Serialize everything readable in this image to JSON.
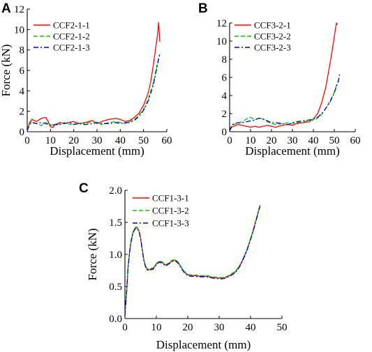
{
  "chart_data": [
    {
      "panel": "A",
      "type": "line",
      "xlabel": "Displacement (mm)",
      "ylabel": "Force (kN)",
      "xlim": [
        0,
        60
      ],
      "ylim": [
        0,
        12
      ],
      "xticks": [
        0,
        10,
        20,
        30,
        40,
        50,
        60
      ],
      "yticks": [
        0,
        2,
        4,
        6,
        8,
        10,
        12
      ],
      "legend_position": "top-left",
      "series": [
        {
          "name": "CCF2-1-1",
          "color": "#ff0000",
          "dash": "solid",
          "x": [
            0,
            1,
            2,
            4,
            6,
            8,
            9,
            10,
            11,
            12,
            14,
            16,
            18,
            20,
            22,
            25,
            28,
            30,
            32,
            35,
            38,
            40,
            42,
            44,
            46,
            48,
            50,
            52,
            53,
            54,
            55,
            56,
            56.5,
            57
          ],
          "y": [
            0.1,
            0.9,
            1.2,
            1.0,
            1.3,
            1.4,
            1.0,
            0.5,
            0.4,
            0.7,
            0.9,
            0.8,
            0.9,
            1.0,
            0.8,
            0.9,
            1.1,
            0.8,
            1.0,
            1.2,
            1.3,
            1.2,
            1.0,
            1.1,
            1.4,
            1.8,
            2.6,
            3.8,
            4.8,
            6.2,
            7.8,
            9.5,
            10.7,
            8.8
          ]
        },
        {
          "name": "CCF2-1-2",
          "color": "#00cc00",
          "dash": "dashed",
          "x": [
            0,
            1,
            2,
            4,
            6,
            8,
            10,
            12,
            14,
            16,
            18,
            20,
            22,
            25,
            28,
            30,
            32,
            35,
            38,
            40,
            42,
            44,
            46,
            48,
            50,
            52,
            54,
            55,
            56,
            57
          ],
          "y": [
            0.1,
            0.8,
            1.0,
            0.8,
            0.6,
            0.9,
            0.7,
            0.6,
            0.8,
            0.9,
            0.7,
            0.8,
            0.9,
            0.8,
            1.0,
            0.9,
            0.7,
            0.9,
            1.0,
            0.9,
            0.8,
            1.0,
            1.2,
            1.6,
            2.2,
            3.2,
            4.6,
            5.6,
            6.8,
            7.6
          ]
        },
        {
          "name": "CCF2-1-3",
          "color": "#0000cc",
          "dash": "dashdot",
          "x": [
            0,
            1,
            2,
            4,
            6,
            8,
            10,
            12,
            14,
            16,
            18,
            20,
            22,
            25,
            28,
            30,
            32,
            35,
            38,
            40,
            42,
            44,
            46,
            48,
            50,
            52,
            54,
            55,
            56,
            57
          ],
          "y": [
            0.1,
            0.7,
            0.9,
            0.8,
            0.9,
            0.8,
            0.6,
            0.7,
            0.7,
            0.8,
            0.9,
            0.7,
            0.8,
            0.7,
            0.8,
            0.9,
            0.8,
            0.8,
            0.9,
            0.8,
            0.9,
            0.9,
            1.1,
            1.5,
            2.1,
            3.0,
            4.4,
            5.4,
            6.6,
            7.7
          ]
        }
      ]
    },
    {
      "panel": "B",
      "type": "line",
      "xlabel": "Displacement (mm)",
      "ylabel": "",
      "xlim": [
        0,
        60
      ],
      "ylim": [
        0,
        12
      ],
      "xticks": [
        0,
        10,
        20,
        30,
        40,
        50,
        60
      ],
      "yticks": [
        0,
        2,
        4,
        6,
        8,
        10,
        12
      ],
      "legend_position": "top-left",
      "series": [
        {
          "name": "CCF3-2-1",
          "color": "#ff0000",
          "dash": "solid",
          "x": [
            0,
            1,
            2,
            4,
            6,
            8,
            10,
            12,
            14,
            16,
            18,
            20,
            22,
            25,
            28,
            30,
            32,
            35,
            38,
            40,
            42,
            44,
            46,
            47,
            48,
            49,
            50,
            51,
            51.5
          ],
          "y": [
            0.1,
            0.5,
            0.6,
            0.8,
            0.7,
            0.6,
            0.5,
            0.6,
            0.5,
            0.6,
            0.7,
            0.6,
            0.5,
            0.7,
            0.8,
            0.7,
            0.9,
            1.0,
            1.1,
            1.4,
            2.0,
            3.2,
            5.0,
            6.3,
            7.6,
            9.0,
            10.5,
            12.0,
            11.8
          ]
        },
        {
          "name": "CCF3-2-2",
          "color": "#00cc00",
          "dash": "dashed",
          "x": [
            0,
            1,
            2,
            4,
            6,
            8,
            10,
            12,
            14,
            16,
            18,
            20,
            22,
            25,
            28,
            30,
            32,
            35,
            38,
            40,
            42,
            44,
            46,
            48,
            50,
            51,
            52
          ],
          "y": [
            0.1,
            0.6,
            0.8,
            0.9,
            1.1,
            1.4,
            1.6,
            1.3,
            1.5,
            1.4,
            1.1,
            0.9,
            0.8,
            0.9,
            1.0,
            0.9,
            1.0,
            1.1,
            1.2,
            1.3,
            1.5,
            1.9,
            2.6,
            3.4,
            4.4,
            5.1,
            5.7
          ]
        },
        {
          "name": "CCF3-2-3",
          "color": "#0000cc",
          "dash": "dashdot",
          "x": [
            0,
            1,
            2,
            4,
            6,
            8,
            10,
            12,
            14,
            16,
            18,
            20,
            22,
            25,
            28,
            30,
            32,
            35,
            38,
            40,
            42,
            44,
            46,
            48,
            50,
            51,
            52,
            52.5
          ],
          "y": [
            0.1,
            0.7,
            0.9,
            1.0,
            1.0,
            1.1,
            1.2,
            1.3,
            1.5,
            1.4,
            1.2,
            1.0,
            1.0,
            0.9,
            0.8,
            1.0,
            1.1,
            1.2,
            1.3,
            1.4,
            1.6,
            2.0,
            2.6,
            3.3,
            4.3,
            5.0,
            5.6,
            6.4
          ]
        }
      ]
    },
    {
      "panel": "C",
      "type": "line",
      "xlabel": "Displacement (mm)",
      "ylabel": "Force (kN)",
      "xlim": [
        0,
        50
      ],
      "ylim": [
        0,
        2.0
      ],
      "xticks": [
        0,
        10,
        20,
        30,
        40,
        50
      ],
      "yticks": [
        "0.0",
        "0.5",
        "1.0",
        "1.5",
        "2.0"
      ],
      "legend_position": "top-left",
      "series": [
        {
          "name": "CCF1-3-1",
          "color": "#ff0000",
          "dash": "solid",
          "x": [
            0,
            0.5,
            1,
            1.5,
            2,
            2.5,
            3,
            3.5,
            4,
            4.5,
            5,
            5.5,
            6,
            6.5,
            7,
            7.5,
            8,
            9,
            10,
            11,
            12,
            13,
            14,
            15,
            16,
            17,
            18,
            19,
            20,
            21,
            22,
            24,
            26,
            28,
            30,
            31,
            32,
            33,
            34,
            35,
            36,
            37,
            38,
            39,
            40,
            41,
            42,
            43
          ],
          "y": [
            0.05,
            0.4,
            0.8,
            1.05,
            1.22,
            1.33,
            1.39,
            1.42,
            1.41,
            1.36,
            1.25,
            1.08,
            0.92,
            0.82,
            0.77,
            0.76,
            0.77,
            0.78,
            0.85,
            0.89,
            0.87,
            0.83,
            0.86,
            0.9,
            0.91,
            0.87,
            0.79,
            0.72,
            0.68,
            0.67,
            0.67,
            0.66,
            0.66,
            0.64,
            0.63,
            0.63,
            0.64,
            0.66,
            0.69,
            0.72,
            0.78,
            0.86,
            0.97,
            1.09,
            1.24,
            1.4,
            1.58,
            1.76
          ]
        },
        {
          "name": "CCF1-3-2",
          "color": "#00cc00",
          "dash": "dashed",
          "x": [
            0,
            0.5,
            1,
            1.5,
            2,
            2.5,
            3,
            3.5,
            4,
            4.5,
            5,
            5.5,
            6,
            6.5,
            7,
            7.5,
            8,
            9,
            10,
            11,
            12,
            13,
            14,
            15,
            16,
            17,
            18,
            19,
            20,
            21,
            22,
            24,
            26,
            28,
            30,
            31,
            32,
            33,
            34,
            35,
            36,
            37,
            38,
            39,
            40,
            41,
            42,
            43
          ],
          "y": [
            0.05,
            0.41,
            0.81,
            1.06,
            1.23,
            1.34,
            1.4,
            1.43,
            1.42,
            1.37,
            1.26,
            1.09,
            0.93,
            0.83,
            0.78,
            0.77,
            0.78,
            0.79,
            0.86,
            0.9,
            0.88,
            0.84,
            0.87,
            0.91,
            0.92,
            0.88,
            0.8,
            0.73,
            0.69,
            0.68,
            0.68,
            0.67,
            0.67,
            0.65,
            0.64,
            0.64,
            0.65,
            0.67,
            0.7,
            0.73,
            0.79,
            0.87,
            0.98,
            1.1,
            1.25,
            1.41,
            1.59,
            1.77
          ]
        },
        {
          "name": "CCF1-3-3",
          "color": "#0000cc",
          "dash": "dashdot",
          "x": [
            0,
            0.5,
            1,
            1.5,
            2,
            2.5,
            3,
            3.5,
            4,
            4.5,
            5,
            5.5,
            6,
            6.5,
            7,
            7.5,
            8,
            9,
            10,
            11,
            12,
            13,
            14,
            15,
            16,
            17,
            18,
            19,
            20,
            21,
            22,
            24,
            26,
            28,
            30,
            31,
            32,
            33,
            34,
            35,
            36,
            37,
            38,
            39,
            40,
            41,
            42,
            43
          ],
          "y": [
            0.05,
            0.39,
            0.79,
            1.04,
            1.21,
            1.32,
            1.38,
            1.41,
            1.4,
            1.35,
            1.24,
            1.07,
            0.91,
            0.81,
            0.76,
            0.75,
            0.76,
            0.77,
            0.84,
            0.88,
            0.86,
            0.82,
            0.85,
            0.89,
            0.9,
            0.86,
            0.78,
            0.71,
            0.67,
            0.66,
            0.66,
            0.65,
            0.65,
            0.63,
            0.62,
            0.62,
            0.63,
            0.65,
            0.68,
            0.71,
            0.77,
            0.85,
            0.96,
            1.08,
            1.23,
            1.39,
            1.57,
            1.75
          ]
        }
      ]
    }
  ]
}
